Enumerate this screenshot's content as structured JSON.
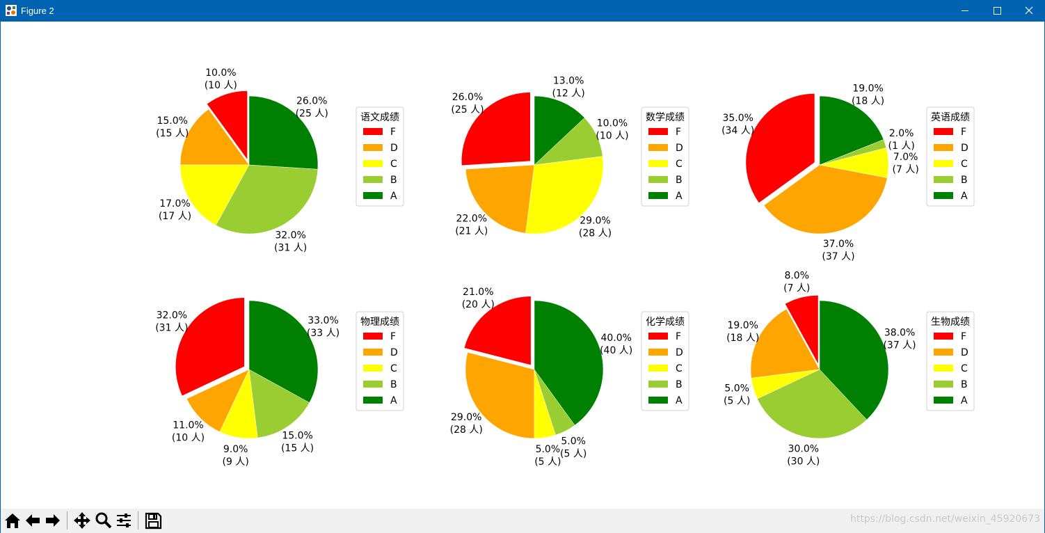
{
  "window": {
    "title": "Figure 2",
    "controls": {
      "minimize": "minimize",
      "maximize": "maximize",
      "close": "close"
    }
  },
  "toolbar": {
    "items": [
      {
        "name": "home-icon"
      },
      {
        "name": "back-icon"
      },
      {
        "name": "forward-icon"
      },
      {
        "name": "pan-icon"
      },
      {
        "name": "zoom-icon"
      },
      {
        "name": "configure-subplots-icon"
      },
      {
        "name": "save-icon"
      }
    ]
  },
  "watermark": "https://blog.csdn.net/weixin_45920673",
  "colors": {
    "F": "#ff0000",
    "D": "#ffa500",
    "C": "#ffff00",
    "B": "#9acd32",
    "A": "#008000"
  },
  "chart_data": [
    {
      "type": "pie",
      "legend_title": "语文成绩",
      "legend_placement": "right",
      "labels": [
        "F",
        "D",
        "C",
        "B",
        "A"
      ],
      "values": [
        10,
        15,
        17,
        32,
        26
      ],
      "counts": [
        10,
        15,
        17,
        31,
        25
      ],
      "percent_labels": [
        "10.0%",
        "15.0%",
        "17.0%",
        "32.0%",
        "26.0%"
      ],
      "count_labels": [
        "(10 人)",
        "(15 人)",
        "(17 人)",
        "(31 人)",
        "(25 人)"
      ],
      "explode": [
        0.08,
        0,
        0,
        0,
        0
      ]
    },
    {
      "type": "pie",
      "legend_title": "数学成绩",
      "legend_placement": "right",
      "labels": [
        "F",
        "D",
        "C",
        "B",
        "A"
      ],
      "values": [
        26,
        22,
        29,
        10,
        13
      ],
      "counts": [
        25,
        21,
        28,
        10,
        12
      ],
      "percent_labels": [
        "26.0%",
        "22.0%",
        "29.0%",
        "10.0%",
        "13.0%"
      ],
      "count_labels": [
        "(25 人)",
        "(21 人)",
        "(28 人)",
        "(10 人)",
        "(12 人)"
      ],
      "explode": [
        0.08,
        0,
        0,
        0,
        0
      ]
    },
    {
      "type": "pie",
      "legend_title": "英语成绩",
      "legend_placement": "right",
      "labels": [
        "F",
        "D",
        "C",
        "B",
        "A"
      ],
      "values": [
        35,
        37,
        7,
        2,
        19
      ],
      "counts": [
        34,
        37,
        7,
        1,
        18
      ],
      "percent_labels": [
        "35.0%",
        "37.0%",
        "7.0%",
        "2.0%",
        "19.0%"
      ],
      "count_labels": [
        "(34 人)",
        "(37 人)",
        "(7 人)",
        "(1 人)",
        "(18 人)"
      ],
      "explode": [
        0.08,
        0,
        0,
        0,
        0
      ]
    },
    {
      "type": "pie",
      "legend_title": "物理成绩",
      "legend_placement": "right",
      "labels": [
        "F",
        "D",
        "C",
        "B",
        "A"
      ],
      "values": [
        32,
        11,
        9,
        15,
        33
      ],
      "counts": [
        31,
        10,
        9,
        15,
        33
      ],
      "percent_labels": [
        "32.0%",
        "11.0%",
        "9.0%",
        "15.0%",
        "33.0%"
      ],
      "count_labels": [
        "(31 人)",
        "(10 人)",
        "(9 人)",
        "(15 人)",
        "(33 人)"
      ],
      "explode": [
        0.08,
        0,
        0,
        0,
        0
      ]
    },
    {
      "type": "pie",
      "legend_title": "化学成绩",
      "legend_placement": "right",
      "labels": [
        "F",
        "D",
        "C",
        "B",
        "A"
      ],
      "values": [
        21,
        29,
        5,
        5,
        40
      ],
      "counts": [
        20,
        28,
        5,
        5,
        40
      ],
      "percent_labels": [
        "21.0%",
        "29.0%",
        "5.0%",
        "5.0%",
        "40.0%"
      ],
      "count_labels": [
        "(20 人)",
        "(28 人)",
        "(5 人)",
        "(5 人)",
        "(40 人)"
      ],
      "explode": [
        0.08,
        0,
        0,
        0,
        0
      ]
    },
    {
      "type": "pie",
      "legend_title": "生物成绩",
      "legend_placement": "right",
      "labels": [
        "F",
        "D",
        "C",
        "B",
        "A"
      ],
      "values": [
        8,
        19,
        5,
        30,
        38
      ],
      "counts": [
        7,
        18,
        5,
        30,
        37
      ],
      "percent_labels": [
        "8.0%",
        "19.0%",
        "5.0%",
        "30.0%",
        "38.0%"
      ],
      "count_labels": [
        "(7 人)",
        "(18 人)",
        "(5 人)",
        "(30 人)",
        "(37 人)"
      ],
      "explode": [
        0.08,
        0,
        0,
        0,
        0
      ]
    }
  ]
}
